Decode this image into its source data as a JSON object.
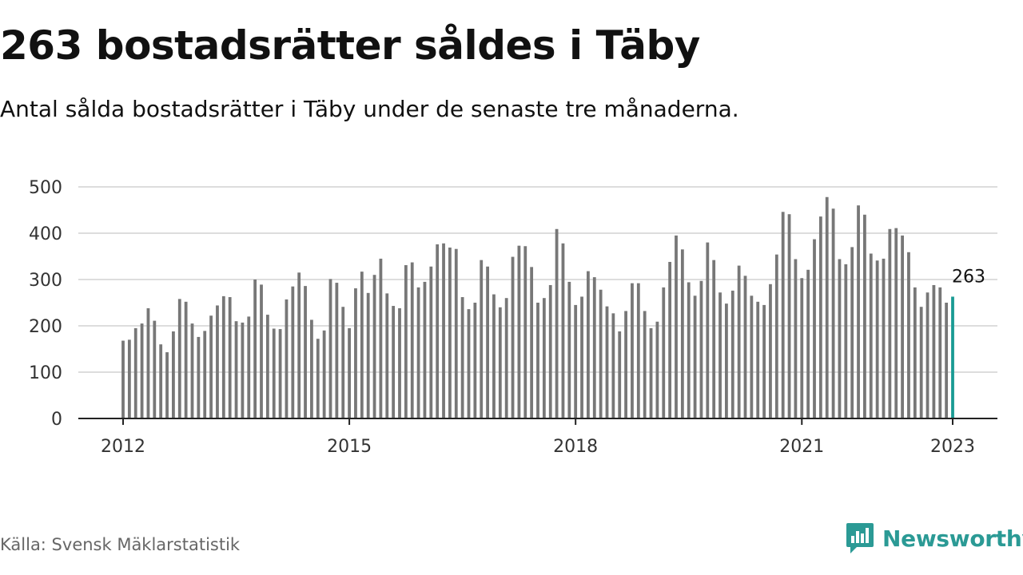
{
  "header": {
    "title": "263 bostadsrätter såldes i Täby",
    "subtitle": "Antal sålda bostadsrätter i Täby under de senaste tre månaderna."
  },
  "footer": {
    "source": "Källa: Svensk Mäklarstatistik",
    "brand": "Newsworthy"
  },
  "colors": {
    "bar": "#777777",
    "highlight": "#1a9b94",
    "grid": "#dddddd",
    "axis": "#222222",
    "brand": "#2b9a95"
  },
  "chart_data": {
    "type": "bar",
    "x_start": "2012-01",
    "x_end": "2023-01",
    "x_ticks": [
      2012,
      2015,
      2018,
      2021,
      2023
    ],
    "ylim": [
      0,
      500
    ],
    "y_ticks": [
      0,
      100,
      200,
      300,
      400,
      500
    ],
    "grid": true,
    "highlight_label": "263",
    "values": [
      168,
      170,
      195,
      205,
      238,
      211,
      160,
      143,
      188,
      258,
      252,
      205,
      176,
      189,
      222,
      244,
      264,
      262,
      210,
      207,
      220,
      300,
      289,
      224,
      194,
      193,
      257,
      285,
      315,
      286,
      213,
      172,
      190,
      301,
      293,
      241,
      195,
      281,
      317,
      271,
      310,
      345,
      270,
      243,
      238,
      331,
      337,
      283,
      295,
      328,
      376,
      378,
      369,
      366,
      262,
      236,
      250,
      342,
      328,
      268,
      240,
      260,
      349,
      373,
      372,
      327,
      250,
      260,
      288,
      409,
      378,
      295,
      245,
      263,
      318,
      305,
      278,
      242,
      227,
      188,
      232,
      292,
      292,
      232,
      195,
      209,
      283,
      338,
      395,
      365,
      294,
      265,
      297,
      380,
      342,
      272,
      248,
      276,
      330,
      308,
      265,
      252,
      245,
      290,
      354,
      446,
      441,
      344,
      303,
      321,
      387,
      436,
      478,
      453,
      344,
      333,
      370,
      460,
      440,
      356,
      341,
      345,
      409,
      411,
      395,
      359,
      283,
      241,
      272,
      288,
      283,
      250,
      263
    ]
  }
}
